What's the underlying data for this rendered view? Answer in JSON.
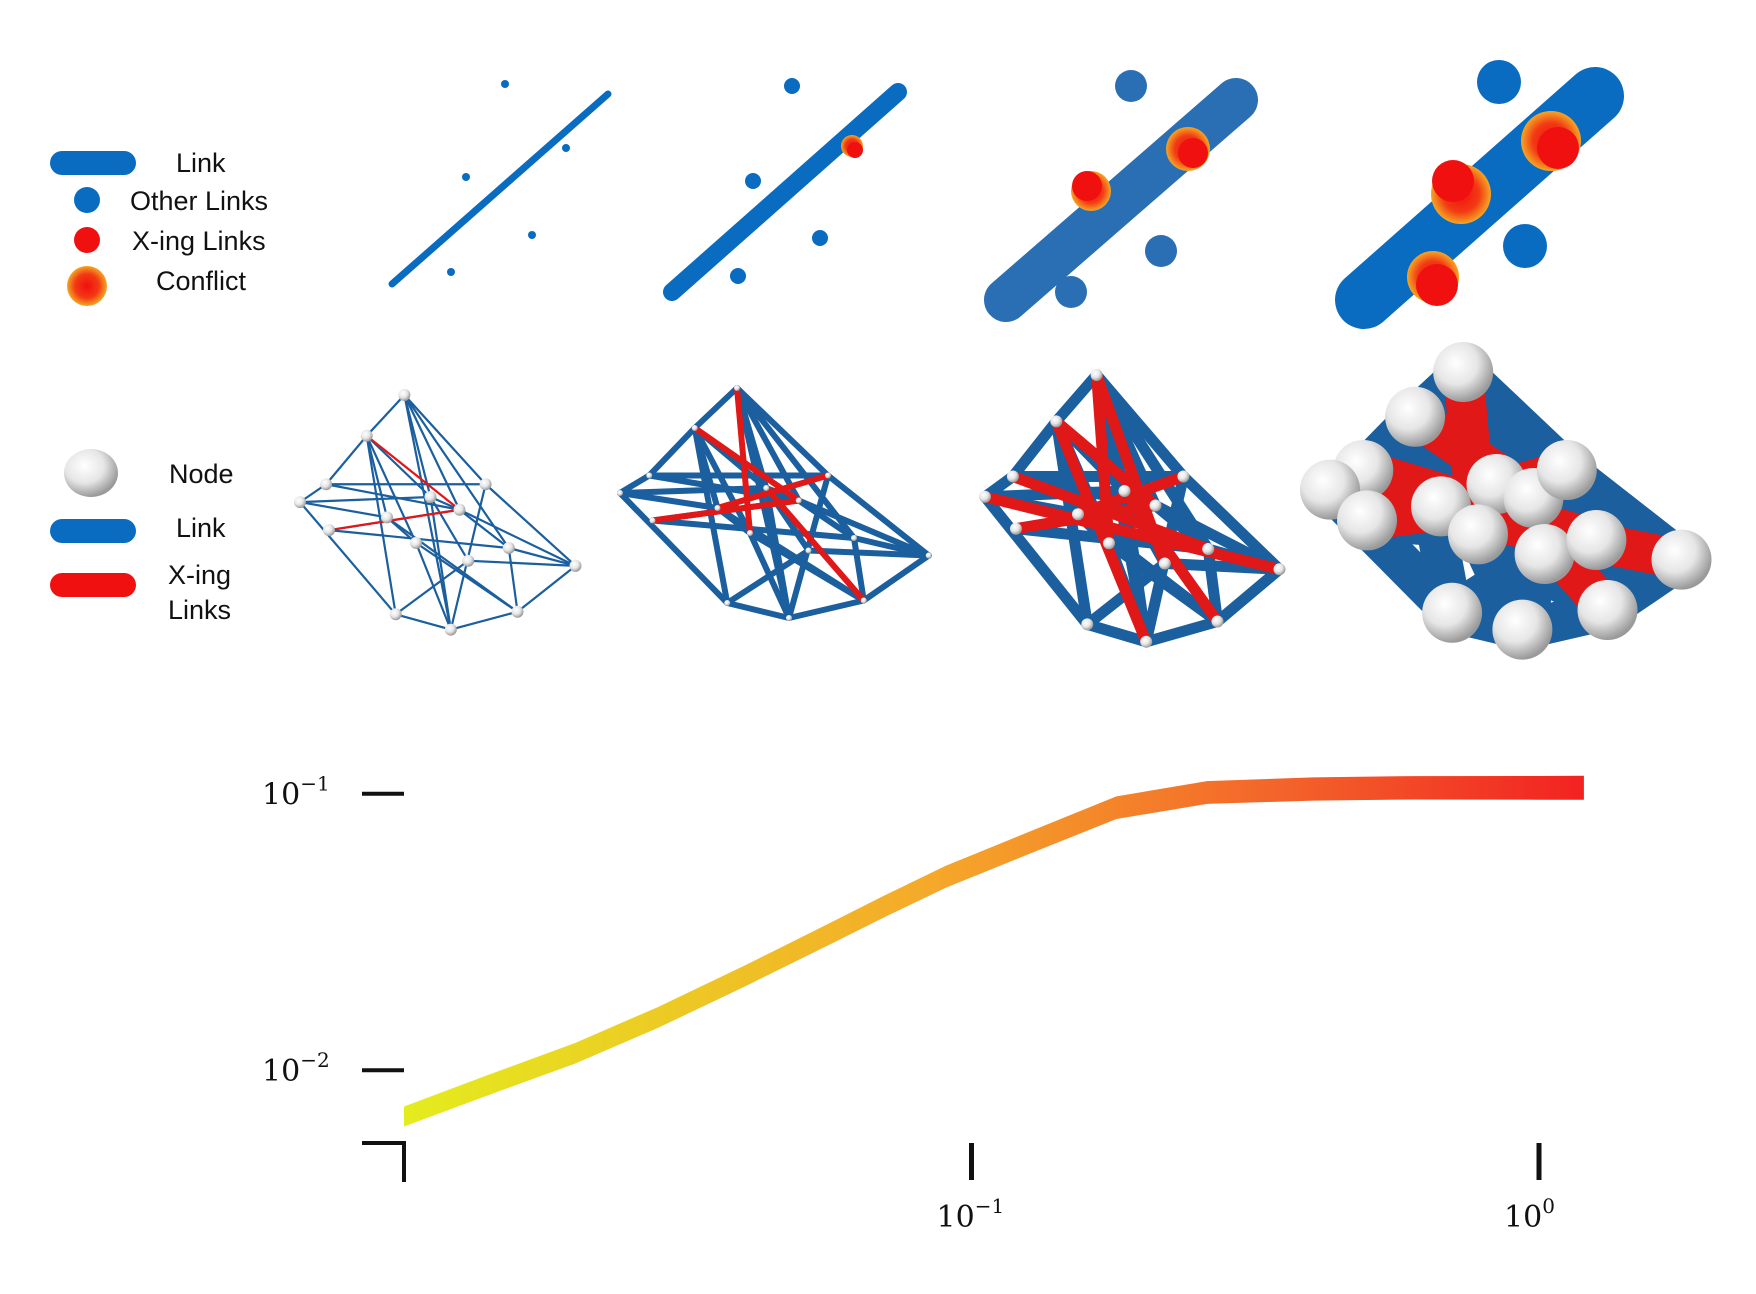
{
  "legend_top": {
    "link": "Link",
    "other_links": "Other Links",
    "xing_links": "X-ing Links",
    "conflict": "Conflict"
  },
  "legend_mid": {
    "node": "Node",
    "link": "Link",
    "xing_line1": "X-ing",
    "xing_line2": "Links"
  },
  "colors": {
    "link_blue": "#0a6cc0",
    "link_blue_dark": "#1b5f9e",
    "xing_red": "#f01010",
    "conflict_orange": "#f5a623",
    "node_white": "#e8e8e8",
    "curve_start": "#e8f020",
    "curve_end": "#f22222"
  },
  "chart_data": {
    "type": "line",
    "x_scale": "log",
    "y_scale": "log",
    "x_ticks": [
      {
        "value": 0.1,
        "base": "10",
        "exp": "−1"
      },
      {
        "value": 1,
        "base": "10",
        "exp": "0"
      }
    ],
    "y_ticks": [
      {
        "value": 0.1,
        "base": "10",
        "exp": "−1"
      },
      {
        "value": 0.01,
        "base": "10",
        "exp": "−2"
      }
    ],
    "xlim": [
      0.01,
      1.25
    ],
    "ylim": [
      0.0055,
      0.15
    ],
    "series": [
      {
        "x": [
          0.01,
          0.014,
          0.02,
          0.028,
          0.04,
          0.056,
          0.07,
          0.09,
          0.13,
          0.18,
          0.26,
          0.4,
          0.6,
          1.0,
          1.2
        ],
        "y": [
          0.0068,
          0.0088,
          0.0115,
          0.0155,
          0.022,
          0.031,
          0.039,
          0.05,
          0.068,
          0.089,
          0.101,
          0.104,
          0.105,
          0.105,
          0.105
        ]
      }
    ],
    "grid": false
  }
}
